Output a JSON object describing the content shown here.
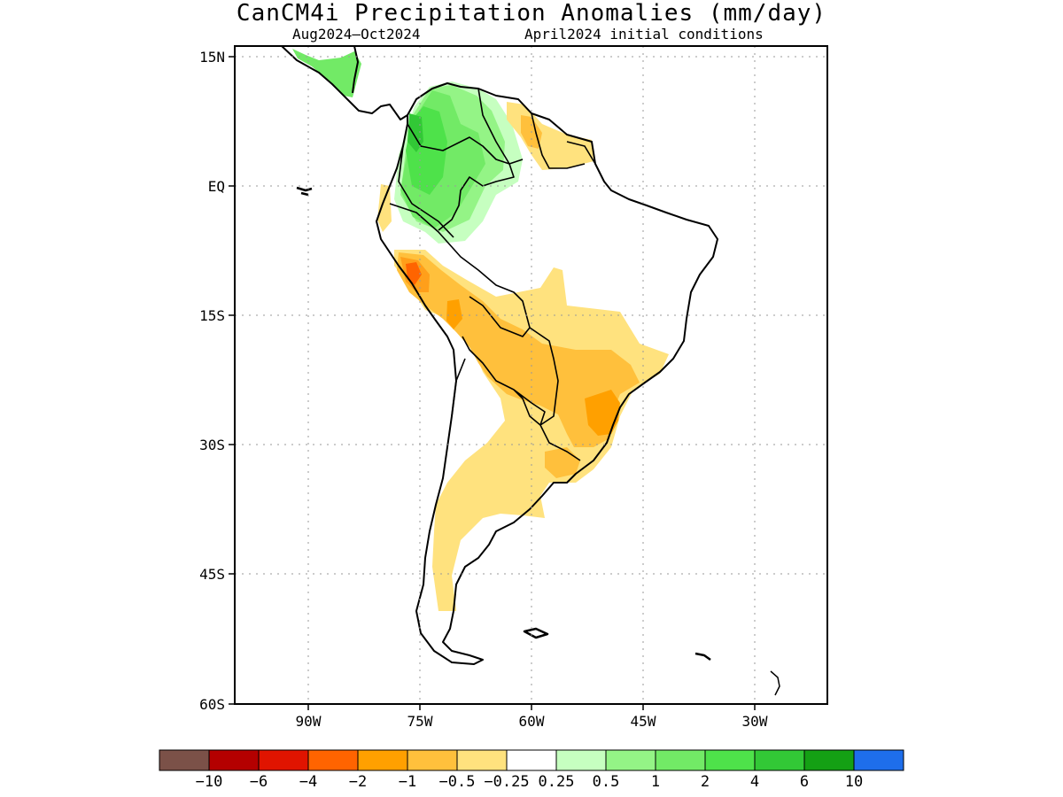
{
  "title": "CanCM4i Precipitation Anomalies (mm/day)",
  "subtitle_period": "Aug2024–Oct2024",
  "subtitle_ic": "April2024 initial conditions",
  "lat_ticks": [
    "15N",
    "EQ",
    "15S",
    "30S",
    "45S",
    "60S"
  ],
  "lon_ticks": [
    "90W",
    "75W",
    "60W",
    "45W",
    "30W"
  ],
  "colorbar": {
    "colors": [
      "#7b5148",
      "#b40000",
      "#e01400",
      "#ff6400",
      "#ffa000",
      "#ffc03c",
      "#ffe27e",
      "#ffffff",
      "#c6ffc0",
      "#94f486",
      "#72ea66",
      "#4ee24a",
      "#32c836",
      "#14a014",
      "#1e6eeb"
    ],
    "labels": [
      "-10",
      "-6",
      "-4",
      "-2",
      "-1",
      "-0.5",
      "-0.25",
      "0.25",
      "0.5",
      "1",
      "2",
      "4",
      "6",
      "10"
    ]
  }
}
